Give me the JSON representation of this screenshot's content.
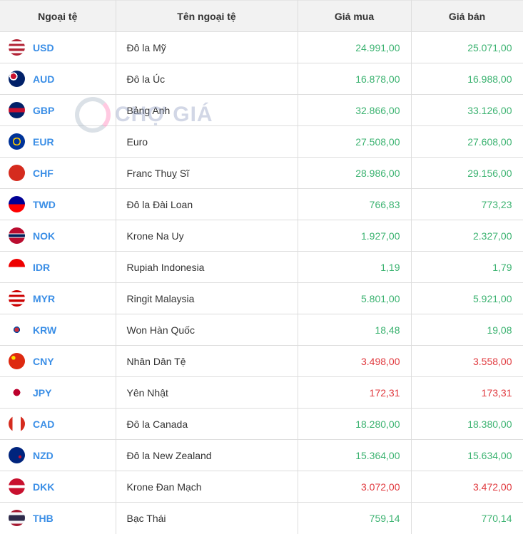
{
  "headers": [
    "Ngoại tệ",
    "Tên ngoại tệ",
    "Giá mua",
    "Giá bán"
  ],
  "watermark": "CHỢ GIÁ",
  "colors": {
    "up": "#3cb371",
    "down": "#e0393e",
    "code": "#3a8ee6"
  },
  "rows": [
    {
      "code": "USD",
      "name": "Đô la Mỹ",
      "buy": "24.991,00",
      "sell": "25.071,00",
      "trend": "up",
      "flag": "linear-gradient(#b22234 0 14%,#fff 14% 28%,#b22234 28% 42%,#fff 42% 57%,#b22234 57% 71%,#fff 71% 85%,#b22234 85%)"
    },
    {
      "code": "AUD",
      "name": "Đô la Úc",
      "buy": "16.878,00",
      "sell": "16.988,00",
      "trend": "up",
      "flag": "radial-gradient(circle at 30% 35%,#c8102e 0 18%,#fff 18% 26%,#012169 26%)"
    },
    {
      "code": "GBP",
      "name": "Bảng Anh",
      "buy": "32.866,00",
      "sell": "33.126,00",
      "trend": "up",
      "flag": "linear-gradient(#012169 0 38%,#c8102e 38% 62%,#012169 62%)"
    },
    {
      "code": "EUR",
      "name": "Euro",
      "buy": "27.508,00",
      "sell": "27.608,00",
      "trend": "up",
      "flag": "radial-gradient(circle,#003399 0 25%,#fc0 25% 35%,#003399 35%)"
    },
    {
      "code": "CHF",
      "name": "Franc Thuỵ Sĩ",
      "buy": "28.986,00",
      "sell": "29.156,00",
      "trend": "up",
      "flag": "linear-gradient(#d52b1e,#d52b1e)"
    },
    {
      "code": "TWD",
      "name": "Đô la Đài Loan",
      "buy": "766,83",
      "sell": "773,23",
      "trend": "up",
      "flag": "linear-gradient(#000095 0 50%,#fe0000 50%)"
    },
    {
      "code": "NOK",
      "name": "Krone Na Uy",
      "buy": "1.927,00",
      "sell": "2.327,00",
      "trend": "up",
      "flag": "linear-gradient(#ba0c2f 0 38%,#fff 38% 42%,#00205b 42% 58%,#fff 58% 62%,#ba0c2f 62%)"
    },
    {
      "code": "IDR",
      "name": "Rupiah Indonesia",
      "buy": "1,19",
      "sell": "1,79",
      "trend": "up",
      "flag": "linear-gradient(#e00 0 50%,#fff 50%)"
    },
    {
      "code": "MYR",
      "name": "Ringit Malaysia",
      "buy": "5.801,00",
      "sell": "5.921,00",
      "trend": "up",
      "flag": "linear-gradient(#cc0001 0 14%,#fff 14% 28%,#cc0001 28% 42%,#fff 42% 57%,#cc0001 57% 71%,#fff 71% 85%,#cc0001 85%)"
    },
    {
      "code": "KRW",
      "name": "Won Hàn Quốc",
      "buy": "18,48",
      "sell": "19,08",
      "trend": "up",
      "flag": "radial-gradient(circle,#cd2e3a 0 20%,#0047a0 20% 28%,#fff 28%)"
    },
    {
      "code": "CNY",
      "name": "Nhân Dân Tệ",
      "buy": "3.498,00",
      "sell": "3.558,00",
      "trend": "down",
      "flag": "radial-gradient(circle at 30% 30%,#ffde00 0 12%,#de2910 12%)"
    },
    {
      "code": "JPY",
      "name": "Yên Nhật",
      "buy": "172,31",
      "sell": "173,31",
      "trend": "down",
      "flag": "radial-gradient(circle,#bc002d 0 30%,#fff 30%)"
    },
    {
      "code": "CAD",
      "name": "Đô la Canada",
      "buy": "18.280,00",
      "sell": "18.380,00",
      "trend": "up",
      "flag": "linear-gradient(90deg,#d52b1e 0 25%,#fff 25% 75%,#d52b1e 75%)"
    },
    {
      "code": "NZD",
      "name": "Đô la New Zealand",
      "buy": "15.364,00",
      "sell": "15.634,00",
      "trend": "up",
      "flag": "radial-gradient(circle at 70% 60%,#c8102e 0 10%,#00247d 10%)"
    },
    {
      "code": "DKK",
      "name": "Krone Đan Mạch",
      "buy": "3.072,00",
      "sell": "3.472,00",
      "trend": "down",
      "flag": "linear-gradient(#c8102e 0 42%,#fff 42% 58%,#c8102e 58%)"
    },
    {
      "code": "THB",
      "name": "Bạc Thái",
      "buy": "759,14",
      "sell": "770,14",
      "trend": "up",
      "flag": "linear-gradient(#a51931 0 16%,#f4f5f8 16% 33%,#2d2a4a 33% 67%,#f4f5f8 67% 84%,#a51931 84%)"
    }
  ]
}
